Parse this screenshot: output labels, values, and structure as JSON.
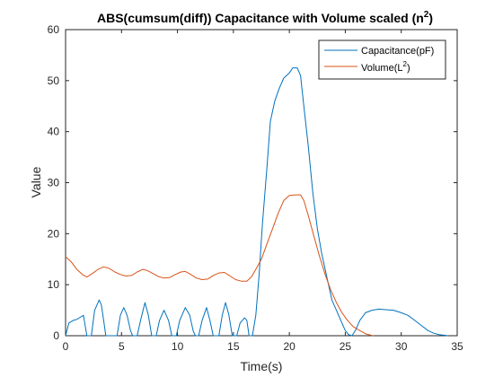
{
  "chart_data": {
    "type": "line",
    "title": "ABS(cumsum(diff)) Capacitance with Volume scaled (n",
    "title_sup": "2",
    "title_close": ")",
    "xlabel": "Time(s)",
    "ylabel": "Value",
    "xlim": [
      0,
      35
    ],
    "ylim": [
      0,
      60
    ],
    "xticks": [
      0,
      5,
      10,
      15,
      20,
      25,
      30,
      35
    ],
    "yticks": [
      0,
      10,
      20,
      30,
      40,
      50,
      60
    ],
    "grid": false,
    "legend_position": "top-right",
    "series": [
      {
        "name": "Capacitance(pF)",
        "legend_text": "Capacitance(pF)",
        "color": "#0072BD",
        "points": [
          [
            0,
            0
          ],
          [
            0.3,
            2.5
          ],
          [
            0.7,
            3
          ],
          [
            1,
            3.2
          ],
          [
            1.3,
            3.6
          ],
          [
            1.6,
            4
          ],
          [
            1.75,
            2
          ],
          [
            1.9,
            0
          ],
          [
            2.3,
            0
          ],
          [
            2.6,
            5
          ],
          [
            3,
            7
          ],
          [
            3.2,
            6
          ],
          [
            3.4,
            3
          ],
          [
            3.6,
            0
          ],
          [
            4.6,
            0
          ],
          [
            4.9,
            4
          ],
          [
            5.2,
            5.5
          ],
          [
            5.5,
            4
          ],
          [
            5.8,
            1
          ],
          [
            6,
            0
          ],
          [
            6.4,
            0
          ],
          [
            6.7,
            3
          ],
          [
            7.1,
            6.5
          ],
          [
            7.4,
            4
          ],
          [
            7.7,
            0
          ],
          [
            8.1,
            0
          ],
          [
            8.4,
            3
          ],
          [
            8.8,
            5
          ],
          [
            9.2,
            3
          ],
          [
            9.5,
            0
          ],
          [
            9.9,
            0
          ],
          [
            10.2,
            3
          ],
          [
            10.7,
            5.5
          ],
          [
            11.1,
            4
          ],
          [
            11.4,
            1
          ],
          [
            11.6,
            0
          ],
          [
            11.9,
            0
          ],
          [
            12.2,
            3
          ],
          [
            12.6,
            5.5
          ],
          [
            12.9,
            3
          ],
          [
            13.2,
            0
          ],
          [
            13.7,
            0
          ],
          [
            14,
            4
          ],
          [
            14.3,
            6.5
          ],
          [
            14.6,
            4
          ],
          [
            14.9,
            0
          ],
          [
            15.3,
            0
          ],
          [
            15.6,
            2.5
          ],
          [
            16,
            3.5
          ],
          [
            16.2,
            3
          ],
          [
            16.4,
            0
          ],
          [
            16.7,
            0
          ],
          [
            17,
            4
          ],
          [
            17.3,
            12
          ],
          [
            17.6,
            22
          ],
          [
            18,
            33
          ],
          [
            18.3,
            42
          ],
          [
            18.7,
            46
          ],
          [
            19.1,
            48.5
          ],
          [
            19.5,
            50.5
          ],
          [
            20,
            51.5
          ],
          [
            20.3,
            52.5
          ],
          [
            20.7,
            52.5
          ],
          [
            21,
            51
          ],
          [
            21.3,
            45
          ],
          [
            21.7,
            37
          ],
          [
            22.1,
            28
          ],
          [
            22.5,
            21
          ],
          [
            22.9,
            16
          ],
          [
            23.4,
            11
          ],
          [
            23.8,
            7
          ],
          [
            24.2,
            5
          ],
          [
            24.6,
            3
          ],
          [
            25,
            1
          ],
          [
            25.3,
            0.2
          ],
          [
            25.6,
            0
          ],
          [
            25.9,
            1
          ],
          [
            26.3,
            3
          ],
          [
            26.8,
            4.5
          ],
          [
            27.4,
            5
          ],
          [
            28,
            5.2
          ],
          [
            28.6,
            5.1
          ],
          [
            29.3,
            5
          ],
          [
            30,
            4.5
          ],
          [
            30.6,
            4
          ],
          [
            31.2,
            3
          ],
          [
            31.8,
            2
          ],
          [
            32.4,
            1
          ],
          [
            32.9,
            0.5
          ],
          [
            33.4,
            0.2
          ],
          [
            33.8,
            0.1
          ],
          [
            34.2,
            0
          ]
        ]
      },
      {
        "name": "Volume(L2)",
        "legend_text": "Volume(L",
        "legend_sup": "2",
        "legend_close": ")",
        "color": "#D95319",
        "points": [
          [
            0,
            15.5
          ],
          [
            0.5,
            14.5
          ],
          [
            1,
            13
          ],
          [
            1.5,
            12
          ],
          [
            1.9,
            11.5
          ],
          [
            2.4,
            12.2
          ],
          [
            2.9,
            13
          ],
          [
            3.4,
            13.5
          ],
          [
            3.9,
            13.2
          ],
          [
            4.4,
            12.5
          ],
          [
            4.9,
            12
          ],
          [
            5.4,
            11.7
          ],
          [
            5.9,
            11.8
          ],
          [
            6.4,
            12.5
          ],
          [
            6.9,
            13
          ],
          [
            7.3,
            12.8
          ],
          [
            7.8,
            12.2
          ],
          [
            8.3,
            11.6
          ],
          [
            8.8,
            11.3
          ],
          [
            9.3,
            11.4
          ],
          [
            9.8,
            12
          ],
          [
            10.3,
            12.5
          ],
          [
            10.7,
            12.6
          ],
          [
            11.2,
            12
          ],
          [
            11.7,
            11.3
          ],
          [
            12.2,
            11
          ],
          [
            12.7,
            11.1
          ],
          [
            13.2,
            11.8
          ],
          [
            13.7,
            12.3
          ],
          [
            14.2,
            12.4
          ],
          [
            14.7,
            11.7
          ],
          [
            15.2,
            11
          ],
          [
            15.7,
            10.7
          ],
          [
            16.2,
            10.7
          ],
          [
            16.6,
            11.5
          ],
          [
            17,
            13
          ],
          [
            17.5,
            15
          ],
          [
            18,
            18
          ],
          [
            18.5,
            21
          ],
          [
            19,
            24
          ],
          [
            19.5,
            26.5
          ],
          [
            20,
            27.5
          ],
          [
            20.5,
            27.6
          ],
          [
            21,
            27.6
          ],
          [
            21.3,
            26.5
          ],
          [
            21.7,
            23.5
          ],
          [
            22.2,
            19.5
          ],
          [
            22.7,
            15.5
          ],
          [
            23.2,
            12
          ],
          [
            23.7,
            9
          ],
          [
            24.2,
            6.5
          ],
          [
            24.7,
            4.5
          ],
          [
            25.2,
            3
          ],
          [
            25.7,
            1.8
          ],
          [
            26.3,
            1
          ],
          [
            26.9,
            0.3
          ],
          [
            27.5,
            0
          ]
        ]
      }
    ]
  }
}
